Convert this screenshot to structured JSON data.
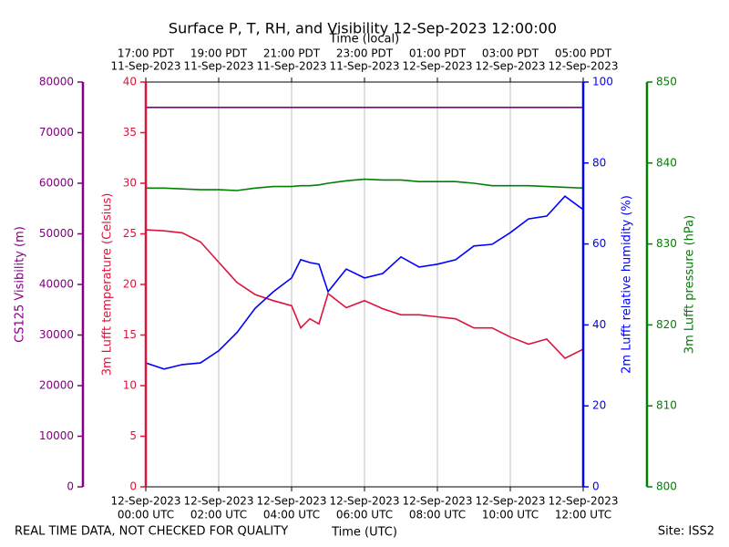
{
  "chart_data": {
    "type": "line",
    "title": "Surface P, T, RH, and Visibility 12-Sep-2023 12:00:00",
    "x_label": "Time (UTC)",
    "x2_label": "Time (local)",
    "footer_left": "REAL TIME DATA, NOT CHECKED FOR QUALITY",
    "footer_right": "Site: ISS2",
    "grid": true,
    "xlim": [
      "2023-09-12T00:00",
      "2023-09-12T12:00"
    ],
    "xticks": [
      {
        "value": "2023-09-12T00:00",
        "label": [
          "12-Sep-2023",
          "00:00 UTC"
        ]
      },
      {
        "value": "2023-09-12T02:00",
        "label": [
          "12-Sep-2023",
          "02:00 UTC"
        ]
      },
      {
        "value": "2023-09-12T04:00",
        "label": [
          "12-Sep-2023",
          "04:00 UTC"
        ]
      },
      {
        "value": "2023-09-12T06:00",
        "label": [
          "12-Sep-2023",
          "06:00 UTC"
        ]
      },
      {
        "value": "2023-09-12T08:00",
        "label": [
          "12-Sep-2023",
          "08:00 UTC"
        ]
      },
      {
        "value": "2023-09-12T10:00",
        "label": [
          "12-Sep-2023",
          "10:00 UTC"
        ]
      },
      {
        "value": "2023-09-12T12:00",
        "label": [
          "12-Sep-2023",
          "12:00 UTC"
        ]
      }
    ],
    "x2ticks": [
      {
        "value": "2023-09-12T00:00",
        "label": [
          "17:00 PDT",
          "11-Sep-2023"
        ]
      },
      {
        "value": "2023-09-12T02:00",
        "label": [
          "19:00 PDT",
          "11-Sep-2023"
        ]
      },
      {
        "value": "2023-09-12T04:00",
        "label": [
          "21:00 PDT",
          "11-Sep-2023"
        ]
      },
      {
        "value": "2023-09-12T06:00",
        "label": [
          "23:00 PDT",
          "11-Sep-2023"
        ]
      },
      {
        "value": "2023-09-12T08:00",
        "label": [
          "01:00 PDT",
          "12-Sep-2023"
        ]
      },
      {
        "value": "2023-09-12T10:00",
        "label": [
          "03:00 PDT",
          "12-Sep-2023"
        ]
      },
      {
        "value": "2023-09-12T12:00",
        "label": [
          "05:00 PDT",
          "12-Sep-2023"
        ]
      }
    ],
    "axes": [
      {
        "label": "CS125 Visibility (m)",
        "color": "#800080",
        "lim": [
          0,
          80000
        ],
        "ticks": [
          0,
          10000,
          20000,
          30000,
          40000,
          50000,
          60000,
          70000,
          80000
        ]
      },
      {
        "label": "3m Lufft temperature (Celsius)",
        "color": "#dc143c",
        "lim": [
          0,
          40
        ],
        "ticks": [
          0,
          5,
          10,
          15,
          20,
          25,
          30,
          35,
          40
        ]
      },
      {
        "label": "2m Lufft relative humidity (%)",
        "color": "#0000ff",
        "lim": [
          0,
          100
        ],
        "ticks": [
          0,
          20,
          40,
          60,
          80,
          100
        ]
      },
      {
        "label": "3m Lufft pressure (hPa)",
        "color": "#008000",
        "lim": [
          800,
          850
        ],
        "ticks": [
          800,
          810,
          820,
          830,
          840,
          850
        ]
      }
    ],
    "x": [
      "2023-09-12T00:00",
      "2023-09-12T00:30",
      "2023-09-12T01:00",
      "2023-09-12T01:30",
      "2023-09-12T02:00",
      "2023-09-12T02:30",
      "2023-09-12T03:00",
      "2023-09-12T03:30",
      "2023-09-12T04:00",
      "2023-09-12T04:15",
      "2023-09-12T04:30",
      "2023-09-12T04:45",
      "2023-09-12T05:00",
      "2023-09-12T05:30",
      "2023-09-12T06:00",
      "2023-09-12T06:30",
      "2023-09-12T07:00",
      "2023-09-12T07:30",
      "2023-09-12T08:00",
      "2023-09-12T08:30",
      "2023-09-12T09:00",
      "2023-09-12T09:30",
      "2023-09-12T10:00",
      "2023-09-12T10:30",
      "2023-09-12T11:00",
      "2023-09-12T11:30",
      "2023-09-12T12:00"
    ],
    "series": [
      {
        "axis": 0,
        "color": "#800080",
        "values": [
          75000,
          75000,
          75000,
          75000,
          75000,
          75000,
          75000,
          75000,
          75000,
          75000,
          75000,
          75000,
          75000,
          75000,
          75000,
          75000,
          75000,
          75000,
          75000,
          75000,
          75000,
          75000,
          75000,
          75000,
          75000,
          75000,
          75000
        ]
      },
      {
        "axis": 3,
        "color": "#008000",
        "values": [
          836.9,
          836.9,
          836.8,
          836.7,
          836.7,
          836.6,
          836.9,
          837.1,
          837.1,
          837.2,
          837.2,
          837.3,
          837.5,
          837.8,
          838.0,
          837.9,
          837.9,
          837.7,
          837.7,
          837.7,
          837.5,
          837.2,
          837.2,
          837.2,
          837.1,
          837.0,
          836.9
        ]
      },
      {
        "axis": 1,
        "color": "#dc143c",
        "values": [
          25.4,
          25.3,
          25.1,
          24.2,
          22.2,
          20.2,
          19.0,
          18.4,
          17.9,
          15.7,
          16.6,
          16.1,
          19.1,
          17.7,
          18.4,
          17.6,
          17.0,
          17.0,
          16.8,
          16.6,
          15.7,
          15.7,
          14.8,
          14.1,
          14.6,
          12.7,
          13.6
        ]
      },
      {
        "axis": 2,
        "color": "#0000ff",
        "values": [
          30.6,
          29.1,
          30.2,
          30.6,
          33.6,
          38.1,
          44.1,
          48.2,
          51.6,
          56.1,
          55.4,
          55.0,
          48.2,
          53.8,
          51.6,
          52.7,
          56.8,
          54.3,
          55.0,
          56.1,
          59.5,
          59.9,
          62.8,
          66.2,
          66.9,
          71.8,
          68.5
        ]
      }
    ]
  }
}
